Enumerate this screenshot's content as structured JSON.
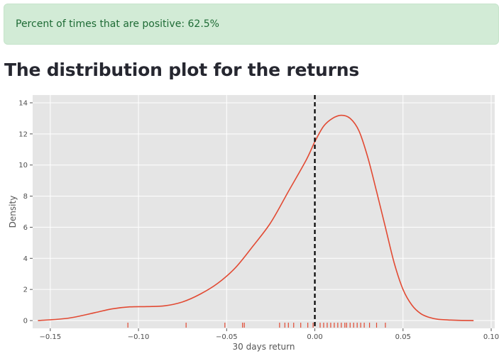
{
  "alert": {
    "text": "Percent of times that are positive: 62.5%",
    "color": "#d2ebd6"
  },
  "section": {
    "title": "The distribution plot for the returns"
  },
  "chart_data": {
    "type": "line",
    "xlabel": "30 days return",
    "ylabel": "Density",
    "xlim": [
      -0.16,
      0.102
    ],
    "ylim": [
      -0.5,
      14.5
    ],
    "xticks": [
      -0.15,
      -0.1,
      -0.05,
      0.0,
      0.05,
      0.1
    ],
    "xtick_labels": [
      "−0.15",
      "−0.10",
      "−0.05",
      "0.00",
      "0.05",
      "0.10"
    ],
    "yticks": [
      0,
      2,
      4,
      6,
      8,
      10,
      12,
      14
    ],
    "ytick_labels": [
      "0",
      "2",
      "4",
      "6",
      "8",
      "10",
      "12",
      "14"
    ],
    "grid": true,
    "background": "#e5e5e5",
    "line_color": "#e24a33",
    "kde": {
      "x": [
        -0.157,
        -0.14,
        -0.125,
        -0.115,
        -0.105,
        -0.095,
        -0.085,
        -0.075,
        -0.065,
        -0.055,
        -0.045,
        -0.035,
        -0.025,
        -0.015,
        -0.005,
        0.0,
        0.005,
        0.01,
        0.015,
        0.02,
        0.025,
        0.03,
        0.035,
        0.04,
        0.045,
        0.05,
        0.055,
        0.06,
        0.065,
        0.07,
        0.08,
        0.09
      ],
      "y": [
        0.0,
        0.15,
        0.5,
        0.75,
        0.88,
        0.9,
        0.95,
        1.2,
        1.7,
        2.4,
        3.4,
        4.8,
        6.3,
        8.3,
        10.3,
        11.5,
        12.5,
        13.0,
        13.2,
        13.0,
        12.2,
        10.5,
        8.3,
        6.0,
        3.7,
        2.0,
        1.0,
        0.45,
        0.2,
        0.08,
        0.02,
        0.0
      ]
    },
    "rug": [
      -0.106,
      -0.073,
      -0.051,
      -0.041,
      -0.04,
      -0.02,
      -0.017,
      -0.015,
      -0.012,
      -0.008,
      -0.004,
      -0.001,
      0.003,
      0.005,
      0.007,
      0.009,
      0.011,
      0.013,
      0.015,
      0.017,
      0.018,
      0.02,
      0.022,
      0.024,
      0.026,
      0.028,
      0.031,
      0.035,
      0.04
    ],
    "reference_line": {
      "x": 0.0,
      "style": "dashed",
      "color": "#000000"
    }
  }
}
